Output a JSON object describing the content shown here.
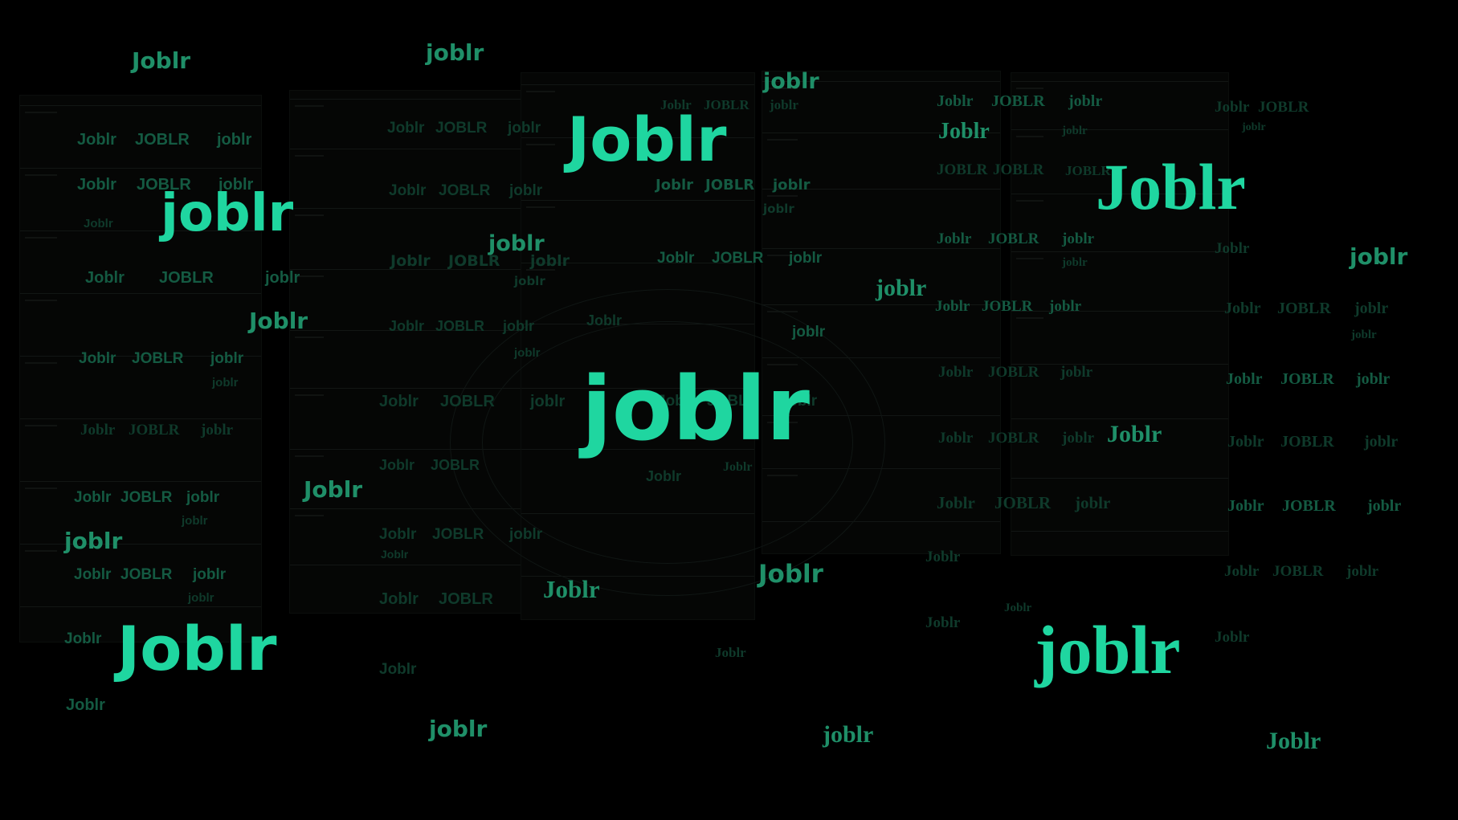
{
  "brand": "joblr",
  "accent_color": "#1fd6a0",
  "background_color": "#000000",
  "wordmarks": {
    "lower": "joblr",
    "title": "Joblr",
    "upper": "JOBLR"
  }
}
